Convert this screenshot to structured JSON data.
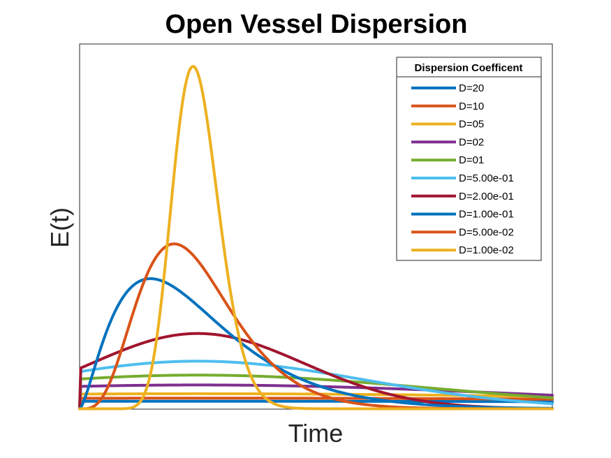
{
  "chart_data": {
    "type": "line",
    "title": "Open Vessel Dispersion",
    "xlabel": "Time",
    "ylabel": "E(t)",
    "legend": {
      "title": "Dispersion Coefficent",
      "placement": "top-right"
    },
    "grid": false,
    "ticks_shown": false,
    "series": [
      {
        "name": "D=20",
        "color": "#0072BD",
        "mean": 1.0,
        "var": 80.0
      },
      {
        "name": "D=10",
        "color": "#D95319",
        "mean": 1.0,
        "var": 40.0
      },
      {
        "name": "D=05",
        "color": "#EDB120",
        "mean": 1.0,
        "var": 20.0
      },
      {
        "name": "D=02",
        "color": "#7E2F8E",
        "mean": 1.0,
        "var": 8.0
      },
      {
        "name": "D=01",
        "color": "#77AC30",
        "mean": 1.0,
        "var": 4.0
      },
      {
        "name": "D=5.00e-01",
        "color": "#4DBEEE",
        "mean": 1.0,
        "var": 2.0
      },
      {
        "name": "D=2.00e-01",
        "color": "#A2142F",
        "mean": 1.0,
        "var": 0.8
      },
      {
        "name": "D=1.00e-01",
        "color": "#0072BD",
        "mean": 1.0,
        "var": 0.4
      },
      {
        "name": "D=5.00e-02",
        "color": "#D95319",
        "mean": 1.0,
        "var": 0.2
      },
      {
        "name": "D=1.00e-02",
        "color": "#EDB120",
        "mean": 1.0,
        "var": 0.04
      }
    ]
  }
}
